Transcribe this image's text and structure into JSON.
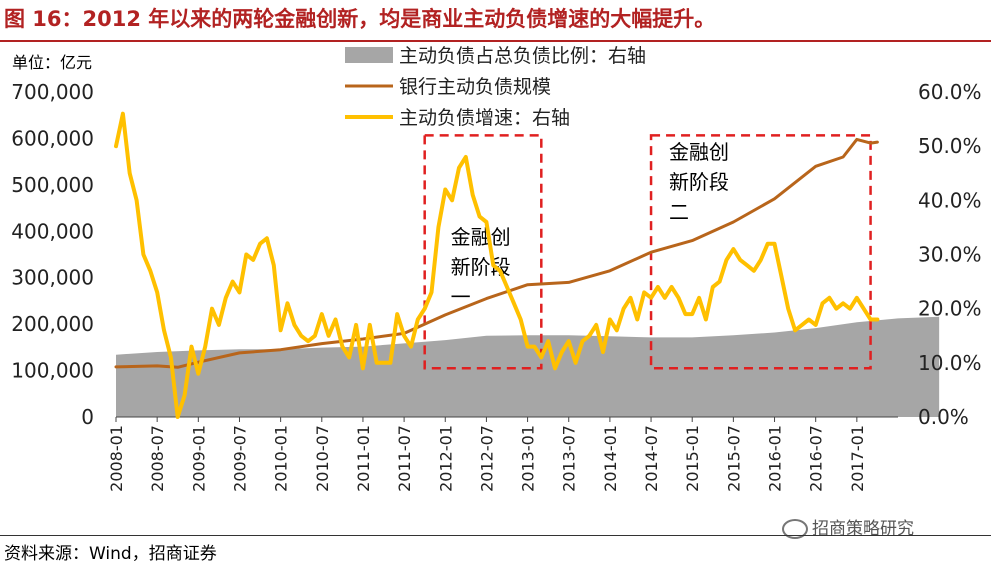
{
  "title": "图 16：2012 年以来的两轮金融创新，均是商业主动负债增速的大幅提升。",
  "source": "资料来源：Wind，招商证券",
  "watermark": "招商策略研究",
  "chart_data": {
    "type": "line",
    "unit_label": "单位：亿元",
    "categories": [
      "2008-01",
      "2008-07",
      "2009-01",
      "2009-07",
      "2010-01",
      "2010-07",
      "2011-01",
      "2011-07",
      "2012-01",
      "2012-07",
      "2013-01",
      "2013-07",
      "2014-01",
      "2014-07",
      "2015-01",
      "2015-07",
      "2016-01",
      "2016-07",
      "2017-01"
    ],
    "left_axis": {
      "min": 0,
      "max": 700000,
      "ticks": [
        "0",
        "100,000",
        "200,000",
        "300,000",
        "400,000",
        "500,000",
        "600,000",
        "700,000"
      ]
    },
    "right_axis": {
      "min": 0,
      "max": 60,
      "ticks": [
        "0.0%",
        "10.0%",
        "20.0%",
        "30.0%",
        "40.0%",
        "50.0%",
        "60.0%"
      ]
    },
    "legend": [
      {
        "name": "主动负债占总负债比例：右轴",
        "type": "area",
        "color": "#a6a6a6"
      },
      {
        "name": "银行主动负债规模",
        "type": "line",
        "color": "#b8651b"
      },
      {
        "name": "主动负债增速：右轴",
        "type": "line",
        "color": "#ffc000"
      }
    ],
    "series": [
      {
        "name": "主动负债占总负债比例：右轴",
        "axis": "right",
        "points": [
          [
            0,
            11.5
          ],
          [
            6,
            12
          ],
          [
            12,
            12.3
          ],
          [
            18,
            12.5
          ],
          [
            24,
            12.5
          ],
          [
            30,
            12.8
          ],
          [
            36,
            13
          ],
          [
            42,
            13.6
          ],
          [
            48,
            14.2
          ],
          [
            54,
            15
          ],
          [
            60,
            15.1
          ],
          [
            66,
            15.1
          ],
          [
            72,
            14.9
          ],
          [
            78,
            14.7
          ],
          [
            84,
            14.7
          ],
          [
            90,
            15.1
          ],
          [
            96,
            15.6
          ],
          [
            102,
            16.4
          ],
          [
            108,
            17.5
          ],
          [
            114,
            18.2
          ],
          [
            120,
            18.5
          ]
        ]
      },
      {
        "name": "银行主动负债规模",
        "axis": "left",
        "points": [
          [
            0,
            108000
          ],
          [
            6,
            110000
          ],
          [
            9,
            107000
          ],
          [
            12,
            118000
          ],
          [
            18,
            138000
          ],
          [
            24,
            145000
          ],
          [
            30,
            158000
          ],
          [
            36,
            168000
          ],
          [
            42,
            180000
          ],
          [
            48,
            220000
          ],
          [
            54,
            255000
          ],
          [
            60,
            285000
          ],
          [
            66,
            290000
          ],
          [
            72,
            315000
          ],
          [
            78,
            355000
          ],
          [
            84,
            380000
          ],
          [
            90,
            420000
          ],
          [
            96,
            470000
          ],
          [
            102,
            540000
          ],
          [
            106,
            560000
          ],
          [
            108,
            598000
          ],
          [
            110,
            590000
          ],
          [
            111,
            592000
          ]
        ]
      },
      {
        "name": "主动负债增速：右轴",
        "axis": "right",
        "points": [
          [
            0,
            50
          ],
          [
            1,
            56
          ],
          [
            2,
            45
          ],
          [
            3,
            40
          ],
          [
            4,
            30
          ],
          [
            5,
            27
          ],
          [
            6,
            23
          ],
          [
            7,
            16
          ],
          [
            8,
            11
          ],
          [
            9,
            0
          ],
          [
            10,
            4
          ],
          [
            11,
            13
          ],
          [
            12,
            8
          ],
          [
            13,
            13
          ],
          [
            14,
            20
          ],
          [
            15,
            17
          ],
          [
            16,
            22
          ],
          [
            17,
            25
          ],
          [
            18,
            23
          ],
          [
            19,
            30
          ],
          [
            20,
            29
          ],
          [
            21,
            32
          ],
          [
            22,
            33
          ],
          [
            23,
            28
          ],
          [
            24,
            16
          ],
          [
            25,
            21
          ],
          [
            26,
            17
          ],
          [
            27,
            15
          ],
          [
            28,
            14
          ],
          [
            29,
            15
          ],
          [
            30,
            19
          ],
          [
            31,
            15
          ],
          [
            32,
            18
          ],
          [
            33,
            13
          ],
          [
            34,
            11
          ],
          [
            35,
            17
          ],
          [
            36,
            9
          ],
          [
            37,
            17
          ],
          [
            38,
            10
          ],
          [
            39,
            10
          ],
          [
            40,
            10
          ],
          [
            41,
            19
          ],
          [
            42,
            15
          ],
          [
            43,
            13
          ],
          [
            44,
            18
          ],
          [
            45,
            20
          ],
          [
            46,
            23
          ],
          [
            47,
            35
          ],
          [
            48,
            42
          ],
          [
            49,
            40
          ],
          [
            50,
            46
          ],
          [
            51,
            48
          ],
          [
            52,
            41
          ],
          [
            53,
            37
          ],
          [
            54,
            36
          ],
          [
            55,
            28
          ],
          [
            56,
            27
          ],
          [
            57,
            24
          ],
          [
            58,
            21
          ],
          [
            59,
            18
          ],
          [
            60,
            13
          ],
          [
            61,
            13
          ],
          [
            62,
            11
          ],
          [
            63,
            14
          ],
          [
            64,
            9
          ],
          [
            65,
            12
          ],
          [
            66,
            14
          ],
          [
            67,
            10
          ],
          [
            68,
            14
          ],
          [
            69,
            15
          ],
          [
            70,
            17
          ],
          [
            71,
            12
          ],
          [
            72,
            18
          ],
          [
            73,
            16
          ],
          [
            74,
            20
          ],
          [
            75,
            22
          ],
          [
            76,
            18
          ],
          [
            77,
            23
          ],
          [
            78,
            22
          ],
          [
            79,
            24
          ],
          [
            80,
            22
          ],
          [
            81,
            24
          ],
          [
            82,
            22
          ],
          [
            83,
            19
          ],
          [
            84,
            19
          ],
          [
            85,
            22
          ],
          [
            86,
            18
          ],
          [
            87,
            24
          ],
          [
            88,
            25
          ],
          [
            89,
            29
          ],
          [
            90,
            31
          ],
          [
            91,
            29
          ],
          [
            92,
            28
          ],
          [
            93,
            27
          ],
          [
            94,
            29
          ],
          [
            95,
            32
          ],
          [
            96,
            32
          ],
          [
            97,
            26
          ],
          [
            98,
            20
          ],
          [
            99,
            16
          ],
          [
            100,
            17
          ],
          [
            101,
            18
          ],
          [
            102,
            17
          ],
          [
            103,
            21
          ],
          [
            104,
            22
          ],
          [
            105,
            20
          ],
          [
            106,
            21
          ],
          [
            107,
            20
          ],
          [
            108,
            22
          ],
          [
            109,
            20
          ],
          [
            110,
            18
          ],
          [
            111,
            18
          ]
        ]
      }
    ],
    "annotations": [
      {
        "text": [
          "金融创",
          "新阶段",
          "一"
        ],
        "box_x": [
          45,
          62
        ],
        "box_y_pct": [
          9,
          52
        ]
      },
      {
        "text": [
          "金融创",
          "新阶段",
          "二"
        ],
        "box_x": [
          78,
          110
        ],
        "box_y_pct": [
          9,
          52
        ]
      }
    ]
  }
}
